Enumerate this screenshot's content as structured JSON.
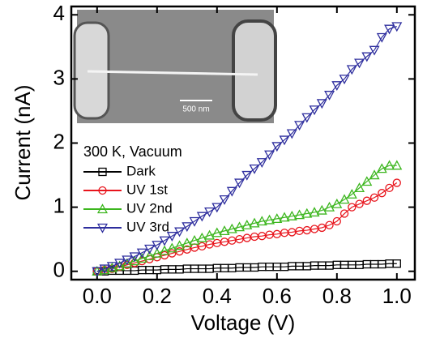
{
  "chart_data": {
    "type": "line",
    "xlabel": "Voltage (V)",
    "ylabel": "Current (nA)",
    "legend_title": "300 K, Vacuum",
    "annotation": "500 nm",
    "x": [
      0,
      0.025,
      0.05,
      0.075,
      0.1,
      0.125,
      0.15,
      0.175,
      0.2,
      0.225,
      0.25,
      0.275,
      0.3,
      0.325,
      0.35,
      0.375,
      0.4,
      0.425,
      0.45,
      0.475,
      0.5,
      0.525,
      0.55,
      0.575,
      0.6,
      0.625,
      0.65,
      0.675,
      0.7,
      0.725,
      0.75,
      0.775,
      0.8,
      0.825,
      0.85,
      0.875,
      0.9,
      0.925,
      0.95,
      0.975,
      1.0
    ],
    "series": [
      {
        "name": "Dark",
        "color": "#000000",
        "marker": "square",
        "values": [
          0.0,
          0.0,
          0.01,
          0.01,
          0.01,
          0.01,
          0.02,
          0.02,
          0.02,
          0.03,
          0.03,
          0.03,
          0.04,
          0.04,
          0.04,
          0.04,
          0.05,
          0.05,
          0.05,
          0.06,
          0.06,
          0.06,
          0.07,
          0.07,
          0.07,
          0.07,
          0.08,
          0.08,
          0.08,
          0.09,
          0.09,
          0.09,
          0.1,
          0.1,
          0.1,
          0.1,
          0.11,
          0.11,
          0.11,
          0.12,
          0.12
        ]
      },
      {
        "name": "UV 1st",
        "color": "#e8141c",
        "marker": "circle",
        "values": [
          0,
          0.02,
          0.04,
          0.07,
          0.1,
          0.13,
          0.16,
          0.19,
          0.22,
          0.25,
          0.28,
          0.31,
          0.34,
          0.37,
          0.39,
          0.42,
          0.44,
          0.46,
          0.48,
          0.5,
          0.52,
          0.54,
          0.55,
          0.57,
          0.58,
          0.6,
          0.61,
          0.63,
          0.64,
          0.66,
          0.68,
          0.72,
          0.78,
          0.9,
          1.0,
          1.05,
          1.1,
          1.15,
          1.22,
          1.3,
          1.38
        ]
      },
      {
        "name": "UV 2nd",
        "color": "#3cb61e",
        "marker": "triangle-up",
        "values": [
          0,
          0.02,
          0.05,
          0.08,
          0.12,
          0.16,
          0.2,
          0.24,
          0.28,
          0.32,
          0.36,
          0.4,
          0.44,
          0.48,
          0.52,
          0.56,
          0.6,
          0.63,
          0.66,
          0.69,
          0.72,
          0.75,
          0.78,
          0.8,
          0.82,
          0.84,
          0.86,
          0.88,
          0.9,
          0.92,
          0.95,
          1.0,
          1.05,
          1.12,
          1.2,
          1.3,
          1.4,
          1.5,
          1.6,
          1.65,
          1.65
        ]
      },
      {
        "name": "UV 3rd",
        "color": "#2e2e9e",
        "marker": "triangle-down",
        "values": [
          0,
          0.04,
          0.08,
          0.13,
          0.18,
          0.23,
          0.29,
          0.35,
          0.41,
          0.48,
          0.55,
          0.62,
          0.7,
          0.78,
          0.86,
          0.93,
          1.0,
          1.12,
          1.25,
          1.38,
          1.5,
          1.6,
          1.7,
          1.82,
          1.95,
          2.05,
          2.15,
          2.28,
          2.4,
          2.52,
          2.62,
          2.75,
          2.9,
          3.0,
          3.15,
          3.25,
          3.35,
          3.45,
          3.65,
          3.78,
          3.82
        ]
      }
    ],
    "xlim": [
      -0.086,
      1.06
    ],
    "ylim": [
      -0.13,
      4.13
    ],
    "xticks": [
      {
        "value": 0,
        "label": "0.0"
      },
      0.2,
      0.4,
      0.6,
      0.8,
      {
        "value": 1,
        "label": "1.0"
      }
    ],
    "yticks": [
      0,
      1,
      2,
      3,
      4
    ]
  }
}
